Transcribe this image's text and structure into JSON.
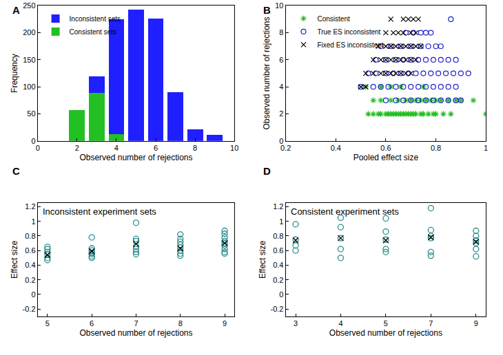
{
  "chart_data": [
    {
      "type": "bar",
      "stacked": true,
      "annotations": [
        "A"
      ],
      "x_label": "Observed number of rejections",
      "y_label": "Frequency",
      "x": [
        2,
        3,
        4,
        5,
        6,
        7,
        8,
        9
      ],
      "series": [
        {
          "name": "Inconsistent sets",
          "color": "#1f1fff",
          "values": [
            0,
            30,
            212,
            243,
            226,
            90,
            22,
            11
          ]
        },
        {
          "name": "Consistent sets",
          "color": "#22c022",
          "values": [
            57,
            89,
            13,
            0,
            0,
            0,
            0,
            0
          ]
        }
      ],
      "xlim": [
        0,
        10
      ],
      "xticks": [
        0,
        2,
        4,
        6,
        8,
        10
      ],
      "ylim": [
        0,
        250
      ],
      "yticks": [
        0,
        50,
        100,
        150,
        200,
        250
      ],
      "legend": "top left",
      "grid": false
    },
    {
      "type": "scatter",
      "annotations": [
        "B"
      ],
      "x_label": "Pooled effect size",
      "y_label": "Observed number of rejections",
      "series": [
        {
          "name": "Consistent",
          "color": "#22c022",
          "marker": "asterisk-open",
          "x": [
            0.53,
            0.55,
            0.57,
            0.58,
            0.6,
            0.61,
            0.62,
            0.63,
            0.64,
            0.65,
            0.66,
            0.67,
            0.68,
            0.69,
            0.7,
            0.71,
            0.72,
            0.74,
            0.75,
            0.77,
            0.79,
            0.8,
            0.83,
            0.86,
            1.0,
            0.55,
            0.58,
            0.62,
            0.65,
            0.68,
            0.7,
            0.72,
            0.74,
            0.76,
            0.78,
            0.8,
            0.82,
            0.85,
            0.88,
            0.9,
            0.95,
            0.52,
            0.58,
            0.62,
            0.66,
            0.75
          ],
          "y": [
            2,
            2,
            2,
            2,
            2,
            2,
            2,
            2,
            2,
            2,
            2,
            2,
            2,
            2,
            2,
            2,
            2,
            2,
            2,
            2,
            2,
            2,
            2,
            2,
            2,
            3,
            3,
            3,
            3,
            3,
            3,
            3,
            3,
            3,
            3,
            3,
            3,
            3,
            3,
            3,
            3,
            4,
            4,
            4,
            4,
            4
          ]
        },
        {
          "name": "True ES inconsistent",
          "color": "#1f1fcc",
          "marker": "circle-open",
          "x": [
            0.6,
            0.64,
            0.67,
            0.7,
            0.73,
            0.76,
            0.79,
            0.82,
            0.85,
            0.88,
            0.9,
            0.5,
            0.55,
            0.58,
            0.61,
            0.64,
            0.67,
            0.7,
            0.73,
            0.76,
            0.79,
            0.82,
            0.85,
            0.88,
            0.53,
            0.56,
            0.6,
            0.63,
            0.66,
            0.69,
            0.72,
            0.75,
            0.78,
            0.81,
            0.84,
            0.87,
            0.9,
            0.93,
            0.56,
            0.6,
            0.64,
            0.67,
            0.7,
            0.73,
            0.76,
            0.79,
            0.82,
            0.85,
            0.88,
            0.58,
            0.62,
            0.66,
            0.7,
            0.74,
            0.77,
            0.8,
            0.82,
            0.68,
            0.71,
            0.74,
            0.76,
            0.78,
            0.86
          ],
          "y": [
            3,
            3,
            3,
            3,
            3,
            3,
            3,
            3,
            3,
            3,
            3,
            4,
            4,
            4,
            4,
            4,
            4,
            4,
            4,
            4,
            4,
            4,
            4,
            4,
            5,
            5,
            5,
            5,
            5,
            5,
            5,
            5,
            5,
            5,
            5,
            5,
            5,
            5,
            6,
            6,
            6,
            6,
            6,
            6,
            6,
            6,
            6,
            6,
            6,
            7,
            7,
            7,
            7,
            7,
            7,
            7,
            7,
            8,
            8,
            8,
            8,
            8,
            9
          ]
        },
        {
          "name": "Fixed ES inconsistent",
          "color": "#000000",
          "marker": "x-thin-open",
          "x": [
            0.5,
            0.52,
            0.52,
            0.55,
            0.58,
            0.6,
            0.62,
            0.64,
            0.66,
            0.68,
            0.7,
            0.55,
            0.58,
            0.6,
            0.62,
            0.64,
            0.66,
            0.68,
            0.7,
            0.72,
            0.57,
            0.6,
            0.62,
            0.64,
            0.66,
            0.68,
            0.7,
            0.72,
            0.74,
            0.6,
            0.63,
            0.65,
            0.67,
            0.7,
            0.72,
            0.62,
            0.67,
            0.69,
            0.71,
            0.73
          ],
          "y": [
            4,
            4,
            5,
            5,
            5,
            5,
            5,
            5,
            5,
            5,
            5,
            6,
            6,
            6,
            6,
            6,
            6,
            6,
            6,
            6,
            7,
            7,
            7,
            7,
            7,
            7,
            7,
            7,
            7,
            8,
            8,
            8,
            8,
            8,
            8,
            9,
            9,
            9,
            9,
            9
          ]
        }
      ],
      "xlim": [
        0.2,
        1
      ],
      "xticks": [
        0.2,
        0.4,
        0.6,
        0.8,
        1
      ],
      "ylim": [
        0,
        10
      ],
      "yticks": [
        0,
        2,
        4,
        6,
        8,
        10
      ],
      "legend": "top left",
      "grid": false
    },
    {
      "type": "dot_plot",
      "annotations": [
        "C"
      ],
      "title": "Inconsistent experiment sets",
      "x_label": "Observed number of rejections",
      "y_label": "Effect size",
      "categories": [
        "5",
        "6",
        "7",
        "8",
        "9"
      ],
      "series": [
        {
          "color": "#2b8c8c",
          "marker": "circle-open",
          "values": [
            [
              0.65,
              0.62,
              0.58,
              0.55,
              0.5,
              0.47
            ],
            [
              0.78,
              0.63,
              0.6,
              0.57,
              0.55,
              0.52,
              0.5
            ],
            [
              0.98,
              0.76,
              0.73,
              0.66,
              0.62,
              0.58,
              0.55
            ],
            [
              0.82,
              0.76,
              0.72,
              0.68,
              0.64,
              0.6,
              0.56,
              0.53
            ],
            [
              0.87,
              0.83,
              0.78,
              0.73,
              0.7,
              0.67,
              0.62,
              0.58,
              0.56
            ]
          ]
        },
        {
          "color": "#000000",
          "marker": "x-thin-open",
          "values": [
            0.54,
            0.59,
            0.69,
            0.63,
            0.7
          ]
        }
      ],
      "ylim": [
        -0.3,
        1.25
      ],
      "yticks": [
        -0.2,
        0,
        0.2,
        0.4,
        0.6,
        0.8,
        1,
        1.2
      ],
      "grid": false
    },
    {
      "type": "dot_plot",
      "annotations": [
        "D"
      ],
      "title": "Consistent experiment sets",
      "x_label": "Observed number of rejections",
      "y_label": "Effect size",
      "categories": [
        "3",
        "4",
        "5",
        "7",
        "9"
      ],
      "series": [
        {
          "color": "#2b8c8c",
          "marker": "circle-open",
          "values": [
            [
              0.96,
              0.75,
              0.67,
              0.6
            ],
            [
              1.05,
              0.92,
              0.77,
              0.62,
              0.5
            ],
            [
              1.04,
              0.86,
              0.75,
              0.62,
              0.58
            ],
            [
              1.18,
              0.88,
              0.8,
              0.77,
              0.58,
              0.53
            ],
            [
              0.87,
              0.8,
              0.74,
              0.7,
              0.62,
              0.52
            ]
          ]
        },
        {
          "color": "#000000",
          "marker": "x-thin-open",
          "values": [
            0.74,
            0.77,
            0.74,
            0.78,
            0.72
          ]
        }
      ],
      "ylim": [
        -0.3,
        1.25
      ],
      "yticks": [
        -0.2,
        0,
        0.2,
        0.4,
        0.6,
        0.8,
        1,
        1.2
      ],
      "grid": false
    }
  ]
}
